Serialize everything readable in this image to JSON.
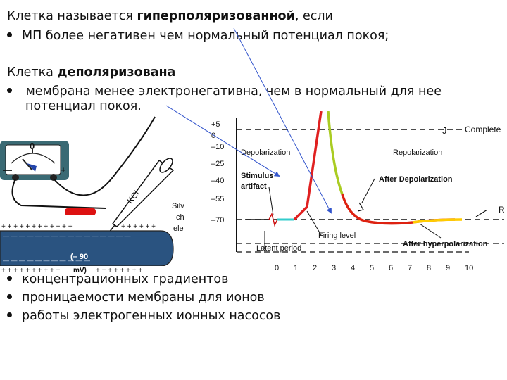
{
  "slide": {
    "line1_prefix": "Клетка называется ",
    "line1_bold": "гиперполяризованной",
    "line1_suffix": ", если",
    "bullet1": "МП более негативен чем нормальный потенциал покоя;",
    "line2_prefix": "Клетка ",
    "line2_bold": "деполяризована",
    "bullet2_line1": " мембрана менее электронегативна, чем в нормальный для нее",
    "bullet2_line2": "потенциал покоя.",
    "bullet3": "концентрационных градиентов",
    "bullet4": "проницаемости мембраны для ионов",
    "bullet5": "работы электрогенных ионных насосов"
  },
  "apparatus": {
    "meter_zero": "0",
    "meter_minus": "—",
    "meter_plus": "+",
    "kcl_label": "KCl",
    "silver_label_1": "Silv",
    "silver_label_2": "ch",
    "silver_label_3": "ele",
    "plus_row_top_left": "+ + + + + + + + + + + +",
    "plus_row_top_right": "+ + + + + +",
    "minus_row_top": "— — — — — — — — — — — — — — — —",
    "potential_label": "(– 90",
    "potential_unit": "mV)",
    "minus_row_bottom": "— — — — — — — — — — —",
    "plus_row_bottom_left": "+ + + + + + + + + +",
    "plus_row_bottom_right": "+ + + + + + + +"
  },
  "graph": {
    "y_ticks": [
      "+5",
      "0",
      "–10",
      "–25",
      "–40",
      "–55",
      "–70"
    ],
    "x_ticks": [
      "0",
      "1",
      "2",
      "3",
      "4",
      "5",
      "6",
      "7",
      "8",
      "9",
      "10"
    ],
    "labels": {
      "complete": "Complete",
      "depolarization": "Depolarization",
      "repolarization": "Repolarization",
      "stimulus_1": "Stimulus",
      "stimulus_2": "artifact",
      "after_depolarization": "After Depolarization",
      "firing_level": "Firing level",
      "latent_period": "Latent period",
      "after_hyperpolarization": "After hyperpolarization",
      "r_label": "R"
    },
    "colors": {
      "rising": "#e02020",
      "falling_top": "#aacc22",
      "falling_bottom": "#dd2211",
      "hyper_tail": "#ffcc00",
      "latent": "#33cccc",
      "pointer": "#3355cc"
    }
  }
}
